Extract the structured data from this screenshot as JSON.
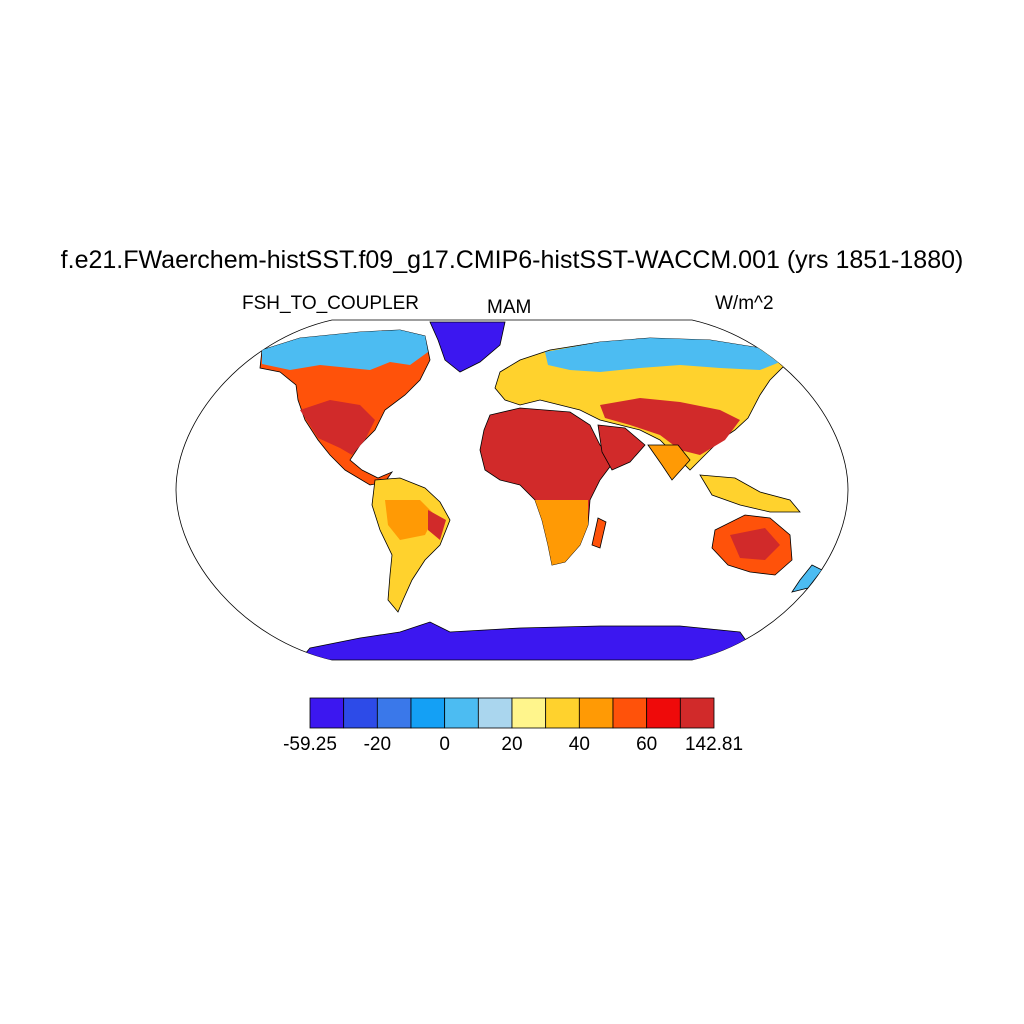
{
  "figure": {
    "title": "f.e21.FWaerchem-histSST.f09_g17.CMIP6-histSST-WACCM.001 (yrs 1851-1880)",
    "left_label": "FSH_TO_COUPLER",
    "center_label": "MAM",
    "right_label": "W/m^2"
  },
  "colorbar": {
    "colors": [
      "#3c17f0",
      "#2d4be8",
      "#3a78ea",
      "#14a0f5",
      "#4cbcf2",
      "#aad6ee",
      "#fff58c",
      "#ffd22d",
      "#ff9a05",
      "#ff520a",
      "#ef0a0a",
      "#d12a2a"
    ],
    "labels": [
      "-59.25",
      "-20",
      "0",
      "20",
      "40",
      "60",
      "142.81"
    ],
    "label_positions": [
      0,
      2,
      4,
      6,
      8,
      10,
      12
    ]
  },
  "map": {
    "projection": "Robinson",
    "ocean_color": "#ffffff",
    "coastline_color": "#000000"
  }
}
